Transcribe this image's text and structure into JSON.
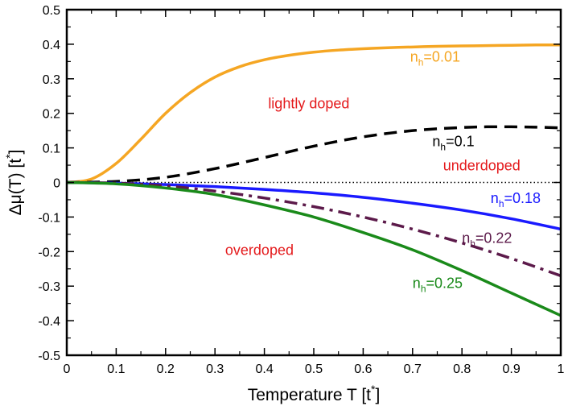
{
  "chart_data": {
    "type": "line",
    "xlabel": "Temperature T [t",
    "xlabel_sup": "*",
    "xlabel_close": "]",
    "ylabel": "Δμ(T) [t",
    "ylabel_sup": "*",
    "ylabel_close": "]",
    "xlim": [
      0,
      1
    ],
    "ylim": [
      -0.5,
      0.5
    ],
    "x_ticks": [
      0,
      0.1,
      0.2,
      0.3,
      0.4,
      0.5,
      0.6,
      0.7,
      0.8,
      0.9,
      1
    ],
    "x_tick_labels": [
      "0",
      "0.1",
      "0.2",
      "0.3",
      "0.4",
      "0.5",
      "0.6",
      "0.7",
      "0.8",
      "0.9",
      "1"
    ],
    "y_ticks": [
      -0.5,
      -0.4,
      -0.3,
      -0.2,
      -0.1,
      0,
      0.1,
      0.2,
      0.3,
      0.4,
      0.5
    ],
    "y_tick_labels": [
      "-0.5",
      "-0.4",
      "-0.3",
      "-0.2",
      "-0.1",
      "0",
      "0.1",
      "0.2",
      "0.3",
      "0.4",
      "0.5"
    ],
    "zero_line": "dotted",
    "series": [
      {
        "name": "n_h=0.01",
        "color": "#f5a623",
        "dash": "solid",
        "x": [
          0,
          0.05,
          0.1,
          0.15,
          0.2,
          0.25,
          0.3,
          0.35,
          0.4,
          0.45,
          0.5,
          0.55,
          0.6,
          0.65,
          0.7,
          0.75,
          0.8,
          0.85,
          0.9,
          0.95,
          1.0
        ],
        "y": [
          0,
          0.01,
          0.055,
          0.125,
          0.2,
          0.26,
          0.305,
          0.335,
          0.355,
          0.368,
          0.377,
          0.383,
          0.387,
          0.39,
          0.392,
          0.394,
          0.395,
          0.396,
          0.397,
          0.398,
          0.398
        ]
      },
      {
        "name": "n_h=0.1",
        "color": "#000000",
        "dash": "dashed",
        "x": [
          0,
          0.1,
          0.2,
          0.3,
          0.4,
          0.5,
          0.6,
          0.7,
          0.8,
          0.85,
          0.9,
          0.95,
          1.0
        ],
        "y": [
          0,
          0.003,
          0.015,
          0.04,
          0.072,
          0.105,
          0.132,
          0.15,
          0.159,
          0.161,
          0.161,
          0.16,
          0.158
        ]
      },
      {
        "name": "n_h=0.18",
        "color": "#1a1aff",
        "dash": "solid",
        "x": [
          0,
          0.1,
          0.2,
          0.3,
          0.4,
          0.5,
          0.6,
          0.7,
          0.8,
          0.9,
          1.0
        ],
        "y": [
          0,
          -0.002,
          -0.006,
          -0.012,
          -0.02,
          -0.03,
          -0.043,
          -0.06,
          -0.08,
          -0.105,
          -0.135
        ]
      },
      {
        "name": "n_h=0.22",
        "color": "#5c1a4a",
        "dash": "dashdot",
        "x": [
          0,
          0.1,
          0.2,
          0.3,
          0.4,
          0.5,
          0.6,
          0.7,
          0.8,
          0.9,
          1.0
        ],
        "y": [
          0,
          -0.002,
          -0.01,
          -0.025,
          -0.045,
          -0.07,
          -0.1,
          -0.135,
          -0.175,
          -0.22,
          -0.27
        ]
      },
      {
        "name": "n_h=0.25",
        "color": "#1a8a1a",
        "dash": "solid",
        "x": [
          0,
          0.1,
          0.2,
          0.3,
          0.4,
          0.5,
          0.6,
          0.7,
          0.8,
          0.9,
          1.0
        ],
        "y": [
          0,
          -0.004,
          -0.016,
          -0.035,
          -0.065,
          -0.1,
          -0.145,
          -0.195,
          -0.255,
          -0.32,
          -0.385
        ]
      }
    ],
    "series_labels": [
      {
        "base": "n",
        "sub": "h",
        "value": "=0.01",
        "color": "#f5a623",
        "x": 0.695,
        "y": 0.35
      },
      {
        "base": "n",
        "sub": "h",
        "value": "=0.1",
        "color": "#000000",
        "x": 0.74,
        "y": 0.105
      },
      {
        "base": "n",
        "sub": "h",
        "value": "=0.18",
        "color": "#1a1aff",
        "x": 0.858,
        "y": -0.06
      },
      {
        "base": "n",
        "sub": "h",
        "value": "=0.22",
        "color": "#5c1a4a",
        "x": 0.8,
        "y": -0.175
      },
      {
        "base": "n",
        "sub": "h",
        "value": "=0.25",
        "color": "#1a8a1a",
        "x": 0.7,
        "y": -0.305
      }
    ],
    "annotations": [
      {
        "text": "lightly doped",
        "color": "#e41a1c",
        "x": 0.49,
        "y": 0.215
      },
      {
        "text": "underdoped",
        "color": "#e41a1c",
        "x": 0.84,
        "y": 0.035
      },
      {
        "text": "overdoped",
        "color": "#e41a1c",
        "x": 0.39,
        "y": -0.21
      }
    ]
  }
}
